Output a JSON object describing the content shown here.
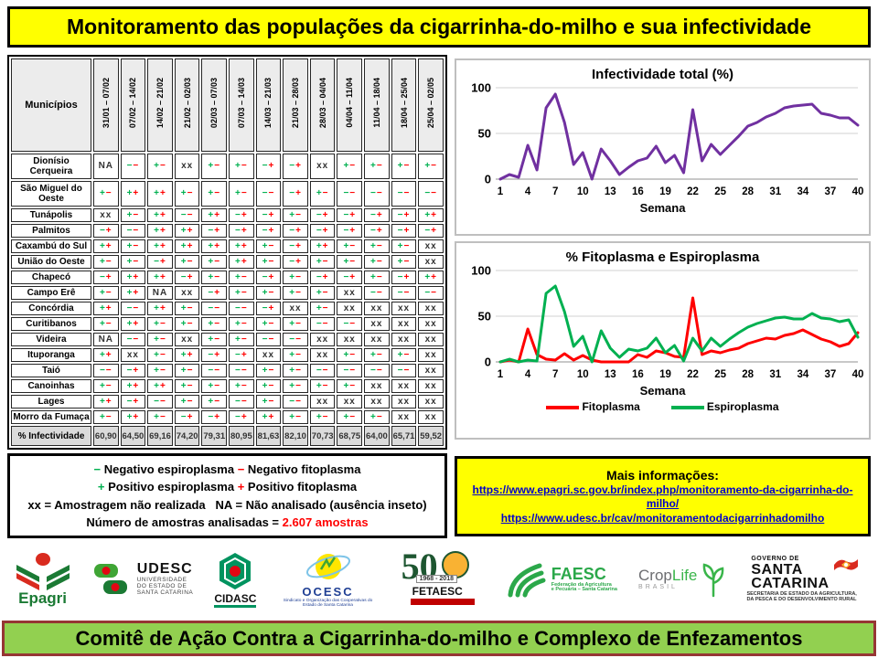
{
  "title": "Monitoramento das populações da cigarrinha-do-milho e sua infectividade",
  "footer": "Comitê de Ação Contra a Cigarrinha-do-milho e Complexo de Enfezamentos",
  "colors": {
    "banner_yellow": "#FFFF00",
    "footer_green": "#92D050",
    "footer_border": "#963634",
    "espiroplasma_green": "#00B050",
    "fitoplasma_red": "#FF0000",
    "infectividade_purple": "#7030A0",
    "link_blue": "#0000CC"
  },
  "table": {
    "corner_header": "Municípios",
    "week_headers": [
      "31/01 – 07/02",
      "07/02 – 14/02",
      "14/02 – 21/02",
      "21/02 – 02/03",
      "02/03 – 07/03",
      "07/03 – 14/03",
      "14/03 – 21/03",
      "21/03 – 28/03",
      "28/03 – 04/04",
      "04/04 – 11/04",
      "11/04 – 18/04",
      "18/04 – 25/04",
      "25/04 – 02/05"
    ],
    "rows": [
      {
        "name": "Dionísio Cerqueira",
        "cells": [
          "NA",
          "--",
          "+-",
          "xx",
          "+-",
          "+-",
          "-+",
          "-+",
          "xx",
          "+-",
          "+-",
          "+-",
          "+-"
        ]
      },
      {
        "name": "São Miguel do Oeste",
        "cells": [
          "+-",
          "++",
          "++",
          "+-",
          "+-",
          "+-",
          "--",
          "-+",
          "+-",
          "--",
          "--",
          "--",
          "--"
        ]
      },
      {
        "name": "Tunápolis",
        "cells": [
          "xx",
          "+-",
          "++",
          "--",
          "++",
          "-+",
          "-+",
          "+-",
          "-+",
          "-+",
          "-+",
          "-+",
          "++"
        ]
      },
      {
        "name": "Palmitos",
        "cells": [
          "-+",
          "--",
          "++",
          "++",
          "-+",
          "-+",
          "-+",
          "-+",
          "-+",
          "-+",
          "-+",
          "-+",
          "-+"
        ]
      },
      {
        "name": "Caxambú do Sul",
        "cells": [
          "++",
          "+-",
          "++",
          "++",
          "++",
          "++",
          "+-",
          "-+",
          "++",
          "+-",
          "+-",
          "+-",
          "xx"
        ]
      },
      {
        "name": "União do Oeste",
        "cells": [
          "+-",
          "+-",
          "-+",
          "+-",
          "+-",
          "++",
          "+-",
          "-+",
          "+-",
          "+-",
          "+-",
          "+-",
          "xx"
        ]
      },
      {
        "name": "Chapecó",
        "cells": [
          "-+",
          "++",
          "++",
          "-+",
          "+-",
          "+-",
          "-+",
          "+-",
          "-+",
          "-+",
          "+-",
          "-+",
          "++"
        ]
      },
      {
        "name": "Campo Erê",
        "cells": [
          "+-",
          "++",
          "NA",
          "xx",
          "-+",
          "+-",
          "+-",
          "+-",
          "+-",
          "xx",
          "--",
          "--",
          "--"
        ]
      },
      {
        "name": "Concórdia",
        "cells": [
          "++",
          "--",
          "++",
          "+-",
          "--",
          "--",
          "-+",
          "xx",
          "+-",
          "xx",
          "xx",
          "xx",
          "xx"
        ]
      },
      {
        "name": "Curitibanos",
        "cells": [
          "+-",
          "++",
          "+-",
          "+-",
          "+-",
          "+-",
          "+-",
          "+-",
          "--",
          "--",
          "xx",
          "xx",
          "xx"
        ]
      },
      {
        "name": "Videira",
        "cells": [
          "NA",
          "--",
          "+-",
          "xx",
          "+-",
          "+-",
          "--",
          "--",
          "xx",
          "xx",
          "xx",
          "xx",
          "xx"
        ]
      },
      {
        "name": "Ituporanga",
        "cells": [
          "++",
          "xx",
          "+-",
          "++",
          "-+",
          "-+",
          "xx",
          "+-",
          "xx",
          "+-",
          "+-",
          "+-",
          "xx"
        ]
      },
      {
        "name": "Taió",
        "cells": [
          "--",
          "-+",
          "+-",
          "+-",
          "--",
          "--",
          "+-",
          "+-",
          "--",
          "--",
          "--",
          "--",
          "xx"
        ]
      },
      {
        "name": "Canoinhas",
        "cells": [
          "+-",
          "++",
          "++",
          "+-",
          "+-",
          "+-",
          "+-",
          "+-",
          "+-",
          "+-",
          "xx",
          "xx",
          "xx"
        ]
      },
      {
        "name": "Lages",
        "cells": [
          "++",
          "-+",
          "--",
          "+-",
          "+-",
          "--",
          "+-",
          "--",
          "xx",
          "xx",
          "xx",
          "xx",
          "xx"
        ]
      },
      {
        "name": "Morro da Fumaça",
        "cells": [
          "+-",
          "++",
          "+-",
          "-+",
          "-+",
          "-+",
          "++",
          "+-",
          "+-",
          "+-",
          "+-",
          "xx",
          "xx"
        ]
      }
    ],
    "footer_row": {
      "name": "% Infectividade",
      "values": [
        "60,90",
        "64,50",
        "69,16",
        "74,20",
        "79,31",
        "80,95",
        "81,63",
        "82,10",
        "70,73",
        "68,75",
        "64,00",
        "65,71",
        "59,52"
      ]
    }
  },
  "legend_box": {
    "minus": "−",
    "plus": "+",
    "neg_espiro": "Negativo espiroplasma",
    "neg_fito": "Negativo fitoplasma",
    "pos_espiro": "Positivo espiroplasma",
    "pos_fito": "Positivo fitoplasma",
    "xx_label": "xx",
    "xx_text": "= Amostragem não realizada",
    "na_label": "NA",
    "na_text": "= Não analisado (ausência inseto)",
    "samples_text": "Número de amostras analisadas =",
    "samples_value": "2.607 amostras"
  },
  "info_box": {
    "heading": "Mais informações:",
    "links": [
      "https://www.epagri.sc.gov.br/index.php/monitoramento-da-cigarrinha-do-milho/",
      "https://www.udesc.br/cav/monitoramentodacigarrinhadomilho"
    ]
  },
  "chart_data": [
    {
      "type": "line",
      "title": "Infectividade total (%)",
      "xlabel": "Semana",
      "ylabel": "",
      "ylim": [
        0,
        100
      ],
      "y_ticks": [
        0,
        50,
        100
      ],
      "x_range": [
        1,
        40
      ],
      "x_ticks": [
        1,
        4,
        7,
        10,
        13,
        16,
        19,
        22,
        25,
        28,
        31,
        34,
        37,
        40
      ],
      "grid": true,
      "series": [
        {
          "name": "Infectividade total",
          "color": "#7030A0",
          "values": [
            0,
            5,
            2,
            37,
            10,
            78,
            93,
            62,
            16,
            29,
            0,
            33,
            20,
            5,
            13,
            20,
            23,
            36,
            18,
            26,
            7,
            76,
            20,
            38,
            27,
            37,
            47,
            58,
            62,
            68,
            72,
            78,
            80,
            81,
            82,
            72,
            70,
            67,
            67,
            59
          ]
        }
      ]
    },
    {
      "type": "line",
      "title": "% Fitoplasma e Espiroplasma",
      "xlabel": "Semana",
      "ylabel": "",
      "ylim": [
        0,
        100
      ],
      "y_ticks": [
        0,
        50,
        100
      ],
      "x_range": [
        1,
        40
      ],
      "x_ticks": [
        1,
        4,
        7,
        10,
        13,
        16,
        19,
        22,
        25,
        28,
        31,
        34,
        37,
        40
      ],
      "grid": true,
      "legend_position": "bottom",
      "series": [
        {
          "name": "Fitoplasma",
          "color": "#FF0000",
          "values": [
            0,
            2,
            0,
            36,
            8,
            3,
            2,
            9,
            2,
            7,
            2,
            0,
            0,
            0,
            0,
            8,
            5,
            12,
            10,
            6,
            5,
            70,
            8,
            12,
            10,
            13,
            15,
            20,
            23,
            26,
            25,
            29,
            31,
            35,
            30,
            25,
            22,
            17,
            20,
            32
          ]
        },
        {
          "name": "Espiroplasma",
          "color": "#00B050",
          "values": [
            0,
            3,
            0,
            2,
            1,
            75,
            83,
            55,
            17,
            28,
            0,
            34,
            15,
            5,
            14,
            12,
            15,
            26,
            10,
            18,
            1,
            26,
            12,
            26,
            17,
            25,
            32,
            38,
            42,
            45,
            48,
            49,
            47,
            47,
            53,
            48,
            47,
            44,
            46,
            27
          ]
        }
      ]
    }
  ],
  "logos": [
    {
      "name": "epagri",
      "text": "Epagri"
    },
    {
      "name": "udesc",
      "title": "UDESC",
      "line1": "UNIVERSIDADE",
      "line2": "DO ESTADO DE",
      "line3": "SANTA CATARINA"
    },
    {
      "name": "cidasc",
      "text": "CIDASC"
    },
    {
      "name": "ocesc",
      "title": "OCESC",
      "caption": "Sindicato e Organização das Cooperativas do Estado de Santa Catarina"
    },
    {
      "name": "fetaesc",
      "number": "50",
      "years": "1968 - 2018",
      "text": "FETAESC"
    },
    {
      "name": "faesc",
      "title": "FAESC",
      "caption1": "Federação da Agricultura",
      "caption2": "e Pecuária – Santa Catarina"
    },
    {
      "name": "croplife",
      "part1": "Crop",
      "part2": "Life",
      "caption": "BRASIL"
    },
    {
      "name": "govsc",
      "top": "GOVERNO DE",
      "line1": "SANTA",
      "line2": "CATARINA",
      "caption": "SECRETARIA DE ESTADO DA AGRICULTURA, DA PESCA E DO DESENVOLVIMENTO RURAL"
    }
  ]
}
